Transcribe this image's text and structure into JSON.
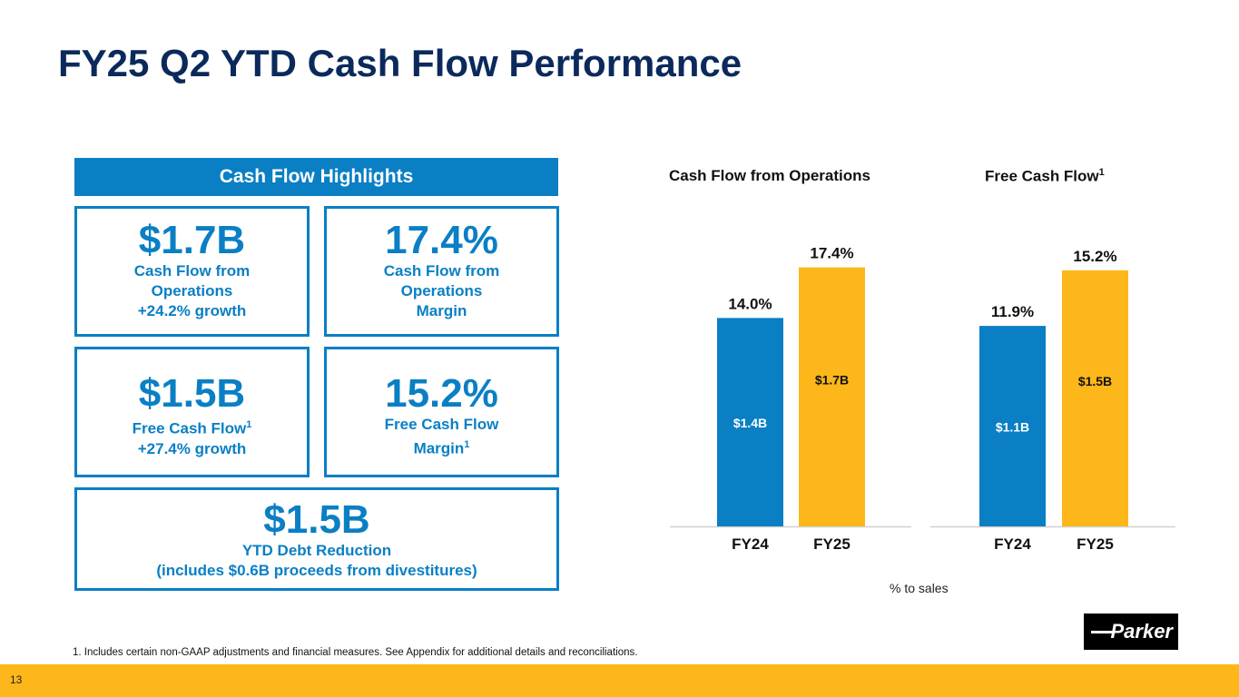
{
  "title": "FY25 Q2 YTD Cash Flow Performance",
  "highlights": {
    "header": "Cash Flow Highlights",
    "cards": [
      {
        "value": "$1.7B",
        "lines": [
          "Cash Flow from",
          "Operations",
          "+24.2% growth"
        ]
      },
      {
        "value": "17.4%",
        "lines": [
          "Cash Flow from",
          "Operations",
          "Margin"
        ]
      },
      {
        "value": "$1.5B",
        "lines": [
          "Free Cash Flow",
          "+27.4% growth"
        ],
        "sup": "1"
      },
      {
        "value": "15.2%",
        "lines": [
          "Free Cash Flow",
          "Margin"
        ],
        "sup": "1"
      },
      {
        "value": "$1.5B",
        "lines": [
          "YTD Debt Reduction",
          "(includes $0.6B proceeds from divestitures)"
        ]
      }
    ]
  },
  "chart_data": [
    {
      "type": "bar",
      "title": "Cash Flow from Operations",
      "categories": [
        "FY24",
        "FY25"
      ],
      "values": [
        14.0,
        17.4
      ],
      "top_labels": [
        "14.0%",
        "17.4%"
      ],
      "inner_labels": [
        "$1.4B",
        "$1.7B"
      ],
      "colors": [
        "#0a7fc4",
        "#fdb71a"
      ],
      "ylabel": "% to sales",
      "ylim": [
        0,
        18.9
      ]
    },
    {
      "type": "bar",
      "title": "Free Cash Flow",
      "title_sup": "1",
      "categories": [
        "FY24",
        "FY25"
      ],
      "values": [
        11.9,
        15.2
      ],
      "top_labels": [
        "11.9%",
        "15.2%"
      ],
      "inner_labels": [
        "$1.1B",
        "$1.5B"
      ],
      "colors": [
        "#0a7fc4",
        "#fdb71a"
      ],
      "ylabel": "% to sales",
      "ylim": [
        0,
        16.7
      ]
    }
  ],
  "pct_note": "% to sales",
  "footnote": "1. Includes certain non-GAAP adjustments and financial measures. See Appendix for additional details and reconciliations.",
  "page_number": "13",
  "logo_text": "Parker"
}
